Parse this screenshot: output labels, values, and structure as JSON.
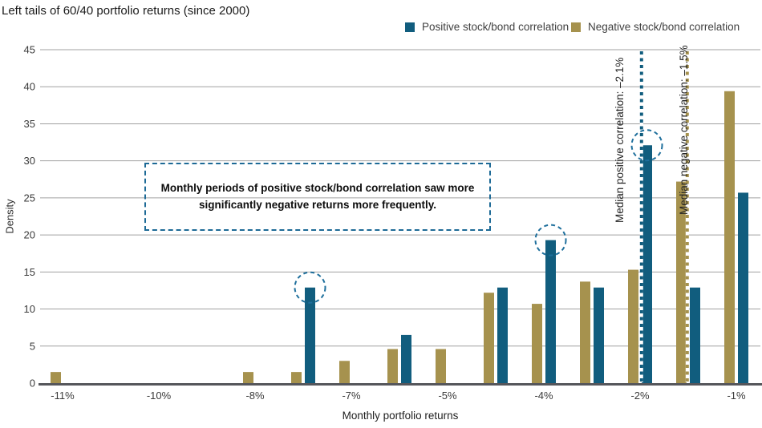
{
  "title": "Left tails of 60/40 portfolio returns (since 2000)",
  "axis": {
    "xlabel": "Monthly portfolio returns",
    "ylabel": "Density"
  },
  "chart_data": {
    "type": "bar",
    "title": "Left tails of 60/40 portfolio returns (since 2000)",
    "xlabel": "Monthly portfolio returns",
    "ylabel": "Density",
    "ylim": [
      0,
      45
    ],
    "ytick_step": 5,
    "grid": "horizontal",
    "legend_position": "top",
    "num_bins": 15,
    "x_ticks": [
      {
        "bin": 0,
        "label": "-11%"
      },
      {
        "bin": 2,
        "label": "-10%"
      },
      {
        "bin": 4,
        "label": "-8%"
      },
      {
        "bin": 6,
        "label": "-7%"
      },
      {
        "bin": 8,
        "label": "-5%"
      },
      {
        "bin": 10,
        "label": "-4%"
      },
      {
        "bin": 12,
        "label": "-2%"
      },
      {
        "bin": 14,
        "label": "-1%"
      }
    ],
    "series": [
      {
        "name": "Positive stock/bond correlation",
        "color": "#115d7e",
        "values": [
          0,
          0,
          0,
          0,
          0,
          12.9,
          0,
          6.5,
          0,
          12.9,
          19.3,
          12.9,
          32.1,
          12.9,
          25.7
        ]
      },
      {
        "name": "Negative stock/bond correlation",
        "color": "#a6924e",
        "values": [
          1.5,
          0,
          0,
          0,
          1.5,
          1.5,
          3.0,
          4.6,
          4.6,
          12.2,
          10.7,
          13.7,
          15.3,
          27.2,
          39.4
        ]
      }
    ],
    "highlight_circled_bins": [
      5,
      10,
      12
    ],
    "highlight_circle_color": "#1e6f9c",
    "median_lines": [
      {
        "label": "Median positive correlation: –2.1%",
        "value": "–2.1%",
        "color": "#115d7e",
        "bin_pos": 12.03
      },
      {
        "label": "Median negative correlation: –1.5%",
        "value": "–1.5%",
        "color": "#a6924e",
        "bin_pos": 12.98
      }
    ],
    "annotation": {
      "lines": [
        "Monthly periods of positive stock/bond correlation saw more",
        "significantly negative returns more frequently."
      ]
    }
  }
}
